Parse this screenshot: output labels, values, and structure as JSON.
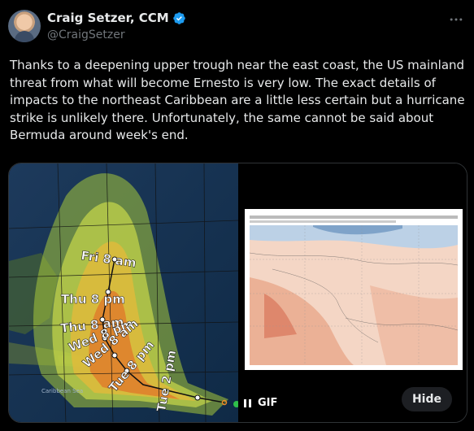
{
  "author": {
    "name": "Craig Setzer, CCM",
    "handle": "@CraigSetzer"
  },
  "tweet": {
    "text": "Thanks to a deepening upper trough near the east coast, the US mainland threat from what will become Ernesto is very low. The exact details of impacts to the northeast Caribbean are a little less certain but a hurricane strike is unlikely there. Unfortunately, the same cannot be said about Bermuda around week's end."
  },
  "map": {
    "track_labels": [
      "Fri 8 am",
      "Thu 8 pm",
      "Thu 8 am",
      "Wed 8 pm",
      "Wed 8 am",
      "Tue 8 pm",
      "Tue 2 pm"
    ],
    "place_labels": [
      "Caribbean Sea"
    ]
  },
  "media": {
    "gif_label": "GIF",
    "hide_label": "Hide"
  },
  "icons": {
    "verified": "verified-badge-icon",
    "more": "more-options-icon",
    "pause": "pause-icon"
  },
  "colors": {
    "background": "#000000",
    "verified": "#1d9bf0",
    "secondary_text": "#71767b"
  }
}
